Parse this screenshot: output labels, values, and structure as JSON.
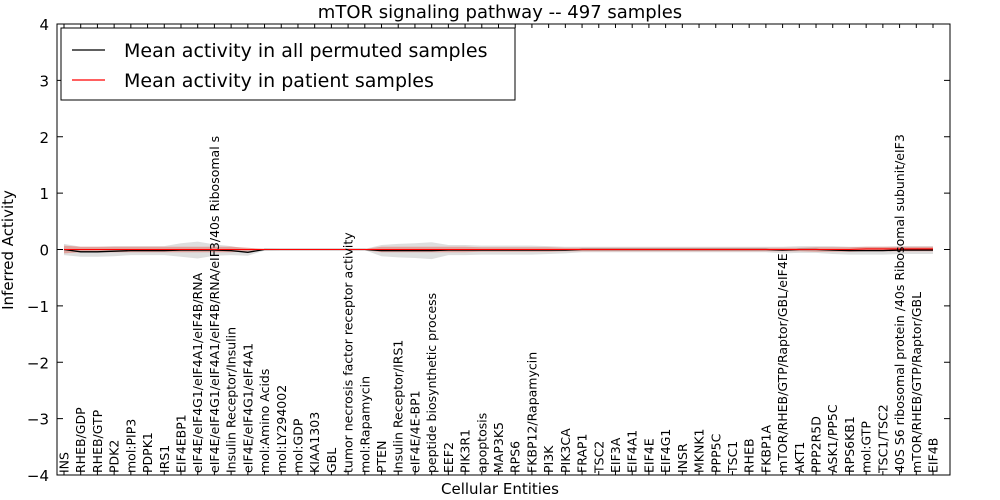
{
  "chart_data": {
    "type": "line",
    "title": "mTOR signaling pathway -- 497 samples",
    "xlabel": "Cellular Entities",
    "ylabel": "Inferred Activity",
    "ylim": [
      -4,
      4
    ],
    "yticks": [
      -4,
      -3,
      -2,
      -1,
      0,
      1,
      2,
      3,
      4
    ],
    "ytick_labels": [
      "−4",
      "−3",
      "−2",
      "−1",
      "0",
      "1",
      "2",
      "3",
      "4"
    ],
    "legend_position": "top-left",
    "categories": [
      "INS",
      "RHEB/GDP",
      "RHEB/GTP",
      "PDK2",
      "mol:PIP3",
      "PDPK1",
      "IRS1",
      "EIF4EBP1",
      "eIF4E/eIF4G1/eIF4A1/eIF4B/RNA",
      "eIF4E/eIF4G1/eIF4A1/eIF4B/RNA/eIF3/40s Ribosomal s",
      "Insulin Receptor/Insulin",
      "eIF4E/eIF4G1/eIF4A1",
      "mol:Amino Acids",
      "mol:LY294002",
      "mol:GDP",
      "KIAA1303",
      "GBL",
      "tumor necrosis factor receptor activity",
      "mol:Rapamycin",
      "PTEN",
      "Insulin Receptor/IRS1",
      "eIF4E/4E-BP1",
      "peptide biosynthetic process",
      "EEF2",
      "PIK3R1",
      "apoptosis",
      "MAP3K5",
      "RPS6",
      "FKBP12/Rapamycin",
      "PI3K",
      "PIK3CA",
      "FRAP1",
      "TSC2",
      "EIF3A",
      "EIF4A1",
      "EIF4E",
      "EIF4G1",
      "INSR",
      "MKNK1",
      "PPP5C",
      "TSC1",
      "RHEB",
      "FKBP1A",
      "mTOR/RHEB/GTP/Raptor/GBL/eIF4E",
      "AKT1",
      "PPP2R5D",
      "ASK1/PP5C",
      "RPS6KB1",
      "mol:GTP",
      "TSC1/TSC2",
      "40S S6 ribosomal protein /40s Ribosomal subunit/eIF3",
      "mTOR/RHEB/GTP/Raptor/GBL",
      "EIF4B"
    ],
    "series": [
      {
        "name": "Mean activity in all permuted samples",
        "color": "#000000",
        "band_color": "#c8c8c8",
        "values": [
          0.0,
          -0.04,
          -0.04,
          -0.03,
          -0.02,
          -0.02,
          -0.02,
          -0.01,
          -0.01,
          -0.01,
          -0.02,
          -0.05,
          0.0,
          0.0,
          0.0,
          0.0,
          0.0,
          0.0,
          0.0,
          -0.02,
          -0.02,
          -0.02,
          -0.02,
          -0.01,
          -0.01,
          -0.01,
          -0.01,
          -0.01,
          -0.01,
          -0.01,
          -0.01,
          0.0,
          0.0,
          0.0,
          0.0,
          0.0,
          0.0,
          0.0,
          0.0,
          0.0,
          0.0,
          0.0,
          0.0,
          -0.01,
          0.0,
          0.0,
          -0.01,
          -0.02,
          -0.02,
          -0.02,
          -0.01,
          -0.01,
          -0.01
        ],
        "std": [
          0.1,
          0.09,
          0.09,
          0.09,
          0.08,
          0.08,
          0.08,
          0.12,
          0.15,
          0.1,
          0.08,
          0.06,
          0.02,
          0.01,
          0.01,
          0.01,
          0.01,
          0.01,
          0.01,
          0.1,
          0.12,
          0.13,
          0.15,
          0.09,
          0.09,
          0.08,
          0.08,
          0.08,
          0.08,
          0.07,
          0.06,
          0.05,
          0.05,
          0.05,
          0.05,
          0.05,
          0.05,
          0.05,
          0.05,
          0.05,
          0.05,
          0.05,
          0.05,
          0.06,
          0.06,
          0.06,
          0.07,
          0.07,
          0.07,
          0.07,
          0.07,
          0.07,
          0.07
        ]
      },
      {
        "name": "Mean activity in patient samples",
        "color": "#ff0000",
        "band_color": "#e08a82",
        "values": [
          0.0,
          0.0,
          0.0,
          0.0,
          0.0,
          0.0,
          0.0,
          0.0,
          0.0,
          0.0,
          0.0,
          0.0,
          0.0,
          0.0,
          0.0,
          0.0,
          0.0,
          0.0,
          0.0,
          0.0,
          0.0,
          0.0,
          0.0,
          0.0,
          0.0,
          0.0,
          0.0,
          0.0,
          0.0,
          0.0,
          0.0,
          0.0,
          0.0,
          0.0,
          0.0,
          0.0,
          0.0,
          0.0,
          0.0,
          0.0,
          0.0,
          0.0,
          0.0,
          0.0,
          0.0,
          0.0,
          0.0,
          0.0,
          0.01,
          0.01,
          0.01,
          0.01,
          0.01
        ],
        "std": [
          0.07,
          0.05,
          0.05,
          0.05,
          0.05,
          0.05,
          0.05,
          0.05,
          0.05,
          0.05,
          0.05,
          0.03,
          0.01,
          0.01,
          0.01,
          0.01,
          0.01,
          0.01,
          0.01,
          0.05,
          0.05,
          0.05,
          0.05,
          0.05,
          0.05,
          0.04,
          0.04,
          0.04,
          0.04,
          0.04,
          0.03,
          0.03,
          0.03,
          0.03,
          0.03,
          0.03,
          0.03,
          0.03,
          0.03,
          0.03,
          0.03,
          0.03,
          0.03,
          0.03,
          0.03,
          0.04,
          0.04,
          0.04,
          0.04,
          0.04,
          0.04,
          0.04,
          0.04
        ]
      }
    ]
  }
}
